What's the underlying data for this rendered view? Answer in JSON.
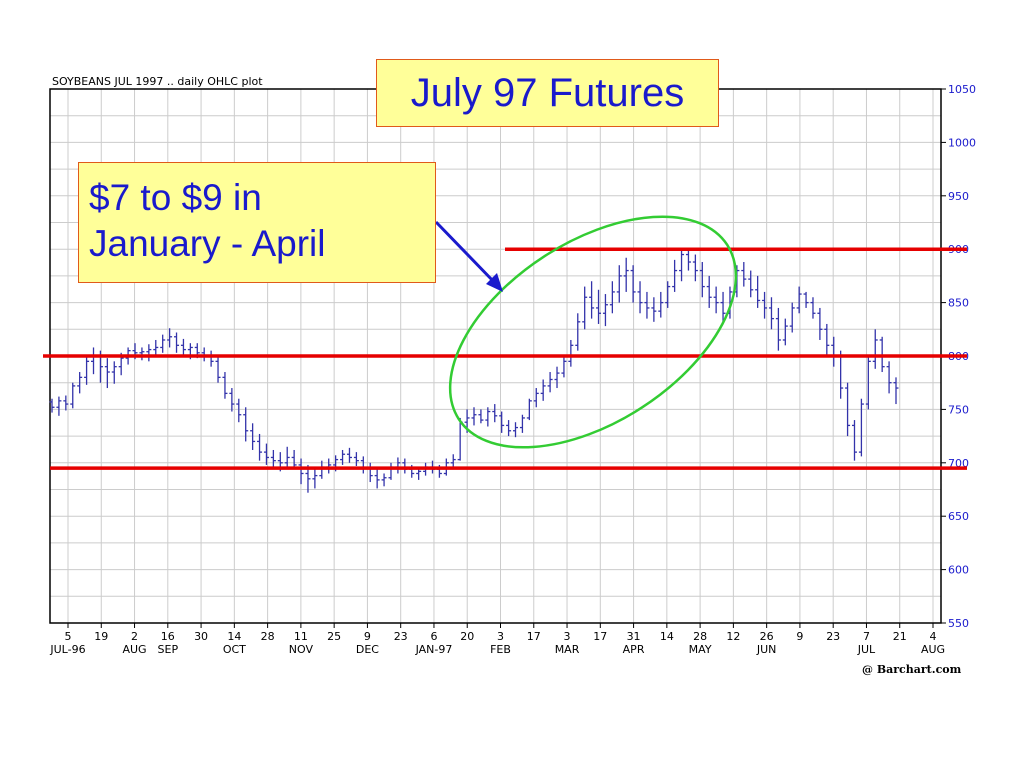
{
  "chart_data": {
    "type": "ohlc",
    "title": "SOYBEANS JUL 1997 .. daily OHLC plot",
    "ylim": [
      550,
      1050
    ],
    "y_ticks": [
      550,
      600,
      650,
      700,
      750,
      800,
      850,
      900,
      950,
      1000,
      1050
    ],
    "x_day_ticks": [
      "5",
      "19",
      "2",
      "16",
      "30",
      "14",
      "28",
      "11",
      "25",
      "9",
      "23",
      "6",
      "20",
      "3",
      "17",
      "3",
      "17",
      "31",
      "14",
      "28",
      "12",
      "26",
      "9",
      "23",
      "7",
      "21",
      "4"
    ],
    "x_month_labels": [
      "JUL-96",
      "AUG",
      "SEP",
      "OCT",
      "NOV",
      "DEC",
      "JAN-97",
      "FEB",
      "MAR",
      "APR",
      "MAY",
      "JUN",
      "JUL",
      "AUG"
    ],
    "reference_lines": [
      900,
      800,
      695
    ],
    "series": [
      {
        "values": [
          [
            757,
            760,
            747,
            752
          ],
          [
            752,
            762,
            744,
            758
          ],
          [
            758,
            763,
            749,
            755
          ],
          [
            755,
            775,
            751,
            772
          ],
          [
            772,
            785,
            765,
            780
          ],
          [
            780,
            800,
            773,
            795
          ],
          [
            795,
            808,
            783,
            800
          ],
          [
            800,
            805,
            775,
            790
          ],
          [
            790,
            798,
            770,
            785
          ],
          [
            785,
            795,
            774,
            790
          ],
          [
            790,
            803,
            782,
            798
          ],
          [
            798,
            808,
            792,
            805
          ],
          [
            805,
            812,
            797,
            803
          ],
          [
            803,
            808,
            796,
            804
          ],
          [
            804,
            811,
            795,
            806
          ],
          [
            806,
            815,
            800,
            808
          ],
          [
            808,
            820,
            803,
            815
          ],
          [
            815,
            826,
            808,
            818
          ],
          [
            818,
            822,
            803,
            810
          ],
          [
            810,
            816,
            801,
            806
          ],
          [
            806,
            812,
            797,
            808
          ],
          [
            808,
            812,
            798,
            803
          ],
          [
            803,
            808,
            795,
            800
          ],
          [
            800,
            805,
            790,
            795
          ],
          [
            795,
            800,
            775,
            780
          ],
          [
            780,
            785,
            760,
            765
          ],
          [
            765,
            770,
            748,
            755
          ],
          [
            755,
            760,
            738,
            745
          ],
          [
            745,
            752,
            720,
            730
          ],
          [
            730,
            737,
            712,
            720
          ],
          [
            720,
            727,
            702,
            710
          ],
          [
            710,
            718,
            698,
            705
          ],
          [
            705,
            712,
            695,
            702
          ],
          [
            702,
            710,
            692,
            700
          ],
          [
            700,
            715,
            695,
            705
          ],
          [
            705,
            712,
            695,
            698
          ],
          [
            698,
            704,
            680,
            690
          ],
          [
            690,
            698,
            672,
            685
          ],
          [
            685,
            695,
            676,
            688
          ],
          [
            688,
            702,
            685,
            696
          ],
          [
            696,
            704,
            690,
            698
          ],
          [
            698,
            707,
            692,
            703
          ],
          [
            703,
            712,
            698,
            708
          ],
          [
            708,
            714,
            700,
            705
          ],
          [
            705,
            710,
            697,
            702
          ],
          [
            702,
            706,
            690,
            695
          ],
          [
            695,
            700,
            682,
            688
          ],
          [
            688,
            694,
            676,
            684
          ],
          [
            684,
            690,
            678,
            686
          ],
          [
            686,
            700,
            684,
            696
          ],
          [
            696,
            705,
            690,
            700
          ],
          [
            700,
            704,
            690,
            694
          ],
          [
            694,
            698,
            686,
            690
          ],
          [
            690,
            696,
            684,
            692
          ],
          [
            692,
            700,
            688,
            696
          ],
          [
            696,
            702,
            690,
            694
          ],
          [
            694,
            698,
            686,
            690
          ],
          [
            690,
            704,
            688,
            700
          ],
          [
            700,
            708,
            695,
            703
          ],
          [
            703,
            742,
            702,
            738
          ],
          [
            738,
            750,
            728,
            742
          ],
          [
            742,
            752,
            735,
            745
          ],
          [
            745,
            750,
            737,
            740
          ],
          [
            740,
            752,
            734,
            748
          ],
          [
            748,
            755,
            738,
            744
          ],
          [
            744,
            748,
            728,
            735
          ],
          [
            735,
            740,
            725,
            730
          ],
          [
            730,
            738,
            724,
            733
          ],
          [
            733,
            745,
            728,
            742
          ],
          [
            742,
            760,
            740,
            758
          ],
          [
            758,
            770,
            752,
            765
          ],
          [
            765,
            778,
            758,
            772
          ],
          [
            772,
            785,
            766,
            778
          ],
          [
            778,
            790,
            770,
            784
          ],
          [
            784,
            800,
            780,
            795
          ],
          [
            795,
            815,
            790,
            810
          ],
          [
            810,
            840,
            805,
            832
          ],
          [
            832,
            865,
            825,
            855
          ],
          [
            855,
            870,
            835,
            845
          ],
          [
            845,
            862,
            830,
            840
          ],
          [
            840,
            858,
            828,
            848
          ],
          [
            848,
            870,
            840,
            860
          ],
          [
            860,
            885,
            850,
            875
          ],
          [
            875,
            892,
            860,
            880
          ],
          [
            880,
            885,
            850,
            860
          ],
          [
            860,
            870,
            840,
            850
          ],
          [
            850,
            860,
            835,
            845
          ],
          [
            845,
            855,
            832,
            842
          ],
          [
            842,
            860,
            836,
            850
          ],
          [
            850,
            870,
            845,
            865
          ],
          [
            865,
            890,
            860,
            880
          ],
          [
            880,
            900,
            870,
            895
          ],
          [
            895,
            900,
            880,
            888
          ],
          [
            888,
            895,
            870,
            880
          ],
          [
            880,
            888,
            855,
            865
          ],
          [
            865,
            875,
            845,
            855
          ],
          [
            855,
            865,
            840,
            850
          ],
          [
            850,
            860,
            830,
            840
          ],
          [
            840,
            865,
            835,
            860
          ],
          [
            860,
            885,
            855,
            880
          ],
          [
            880,
            888,
            865,
            872
          ],
          [
            872,
            880,
            855,
            862
          ],
          [
            862,
            875,
            845,
            852
          ],
          [
            852,
            860,
            835,
            845
          ],
          [
            845,
            855,
            825,
            835
          ],
          [
            835,
            845,
            805,
            815
          ],
          [
            815,
            835,
            810,
            828
          ],
          [
            828,
            850,
            822,
            845
          ],
          [
            845,
            865,
            840,
            858
          ],
          [
            858,
            860,
            845,
            850
          ],
          [
            850,
            855,
            835,
            840
          ],
          [
            840,
            845,
            815,
            825
          ],
          [
            825,
            830,
            800,
            810
          ],
          [
            810,
            818,
            790,
            800
          ],
          [
            800,
            805,
            760,
            770
          ],
          [
            770,
            775,
            725,
            735
          ],
          [
            735,
            740,
            702,
            710
          ],
          [
            710,
            760,
            706,
            755
          ],
          [
            755,
            800,
            750,
            795
          ],
          [
            795,
            825,
            788,
            815
          ],
          [
            815,
            818,
            785,
            790
          ],
          [
            790,
            795,
            765,
            775
          ],
          [
            775,
            780,
            755,
            770
          ]
        ]
      }
    ]
  },
  "overlay": {
    "title_box": "July 97 Futures",
    "note_line1": "$7 to $9 in",
    "note_line2": "January - April"
  },
  "credit": "@ Barchart.com",
  "colors": {
    "reference_line": "#e60000",
    "ellipse": "#33cc33",
    "arrow": "#1a1acc",
    "price": "#3333aa",
    "axis_labels": "#1a1acc",
    "grid": "#cccccc",
    "callout_fill": "#ffff99",
    "callout_border": "#e05a1a"
  }
}
